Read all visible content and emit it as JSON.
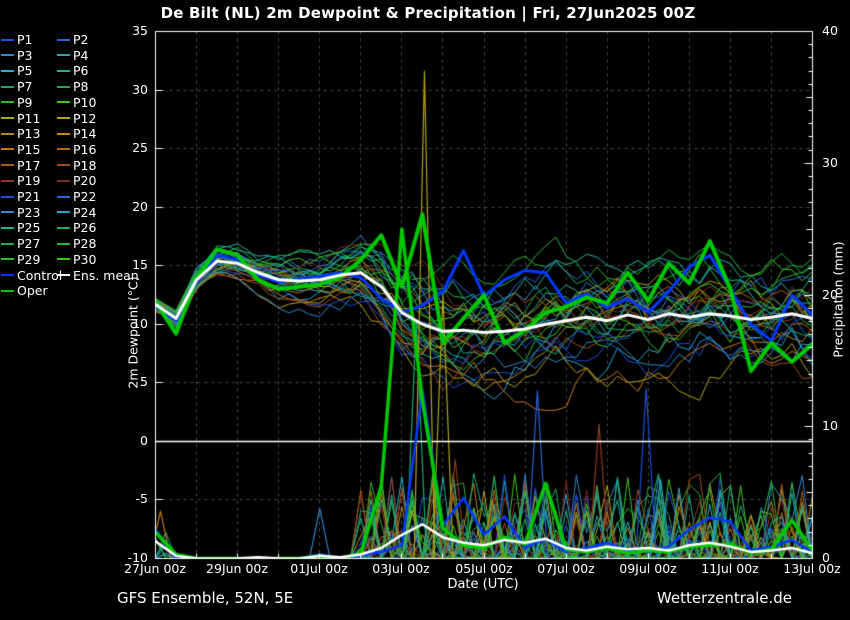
{
  "title": "De Bilt  (NL)  2m Dewpoint & Precipitation | Fri, 27Jun2025 00Z",
  "footer": {
    "left": "GFS Ensemble, 52N, 5E",
    "right": "Wetterzentrale.de"
  },
  "colors": {
    "background": "#000000",
    "text": "#ffffff",
    "grid": "#4a4a4a",
    "frame": "#ffffff",
    "zero_line": "#ffffff",
    "mean": "#ffffff",
    "control": "#0038ff",
    "oper": "#00c800"
  },
  "legend": {
    "column1": [
      {
        "label": "P1",
        "color": "#1e50d8"
      },
      {
        "label": "P3",
        "color": "#2f86c8"
      },
      {
        "label": "P5",
        "color": "#1fb4c8"
      },
      {
        "label": "P7",
        "color": "#1aaa6e"
      },
      {
        "label": "P9",
        "color": "#2cb434"
      },
      {
        "label": "P11",
        "color": "#a8a814"
      },
      {
        "label": "P13",
        "color": "#b08c14"
      },
      {
        "label": "P15",
        "color": "#c47716"
      },
      {
        "label": "P17",
        "color": "#a85c10"
      },
      {
        "label": "P19",
        "color": "#8f3a20"
      },
      {
        "label": "P21",
        "color": "#1e50d8"
      },
      {
        "label": "P23",
        "color": "#2f86c8"
      },
      {
        "label": "P25",
        "color": "#1cb4a0"
      },
      {
        "label": "P27",
        "color": "#1ea85a"
      },
      {
        "label": "P29",
        "color": "#30bc2e"
      },
      {
        "label": "Control",
        "color": "#0038ff"
      },
      {
        "label": "Oper",
        "color": "#00c800"
      }
    ],
    "column2": [
      {
        "label": "P2",
        "color": "#2a64dc"
      },
      {
        "label": "P4",
        "color": "#28a4c8"
      },
      {
        "label": "P6",
        "color": "#1cb496"
      },
      {
        "label": "P8",
        "color": "#22a84b"
      },
      {
        "label": "P10",
        "color": "#3cc41e"
      },
      {
        "label": "P12",
        "color": "#b4a016"
      },
      {
        "label": "P14",
        "color": "#c08614"
      },
      {
        "label": "P16",
        "color": "#b86a12"
      },
      {
        "label": "P18",
        "color": "#a04a1c"
      },
      {
        "label": "P20",
        "color": "#7e2a1e"
      },
      {
        "label": "P22",
        "color": "#2a64dc"
      },
      {
        "label": "P24",
        "color": "#28a4c8"
      },
      {
        "label": "P26",
        "color": "#18a878"
      },
      {
        "label": "P28",
        "color": "#28b040"
      },
      {
        "label": "P30",
        "color": "#3cc41e"
      },
      {
        "label": "Ens. mean",
        "color": "#ffffff"
      }
    ]
  },
  "chart_data": {
    "type": "line",
    "title": "De Bilt  (NL)  2m Dewpoint & Precipitation | Fri, 27Jun2025 00Z",
    "xlabel": "Date (UTC)",
    "x_axis": {
      "days_total": 16,
      "tick_labels": [
        "27Jun 00z",
        "29Jun 00z",
        "01Jul 00z",
        "03Jul 00z",
        "05Jul 00z",
        "07Jul 00z",
        "09Jul 00z",
        "11Jul 00z",
        "13Jul 00z"
      ],
      "tick_step_days": 2,
      "grid_step_days": 1
    },
    "y_left": {
      "label": "2m Dewpoint (°C)",
      "min": -10,
      "max": 35,
      "tick_labels": [
        "35",
        "30",
        "25",
        "20",
        "15",
        "10",
        "5",
        "0",
        "-5",
        "-10"
      ],
      "tick_values": [
        35,
        30,
        25,
        20,
        15,
        10,
        5,
        0,
        -5,
        -10
      ],
      "grid_values": [
        30,
        25,
        20,
        15,
        10,
        5,
        -5
      ],
      "zero_line": 0
    },
    "y_right": {
      "label": "Precipitation (mm)",
      "min": 0,
      "max": 40,
      "tick_labels": [
        "40",
        "30",
        "20",
        "10",
        "0"
      ],
      "tick_values": [
        40,
        30,
        20,
        10,
        0
      ]
    },
    "time_step_hours": 12,
    "series": {
      "mean": {
        "name": "Ens. mean",
        "color": "#ffffff",
        "width": 3,
        "dew": [
          11.7,
          10.5,
          13.8,
          15.4,
          15.2,
          14.4,
          13.8,
          13.7,
          13.8,
          14.2,
          14.4,
          13.2,
          11.0,
          10.0,
          9.4,
          9.5,
          9.3,
          9.4,
          9.6,
          10.0,
          10.3,
          10.6,
          10.3,
          10.8,
          10.4,
          10.9,
          10.6,
          10.9,
          10.7,
          10.4,
          10.6,
          10.9,
          10.5
        ],
        "precip": [
          1.3,
          0.2,
          0,
          0,
          0,
          0.1,
          0,
          0,
          0.2,
          0.1,
          0.3,
          0.8,
          1.8,
          2.6,
          1.6,
          1.2,
          1.0,
          1.4,
          1.2,
          1.5,
          0.8,
          0.6,
          0.9,
          0.7,
          0.8,
          0.6,
          1.0,
          1.2,
          0.9,
          0.5,
          0.6,
          0.8,
          0.4
        ]
      },
      "control": {
        "name": "Control",
        "color": "#0038ff",
        "width": 3,
        "dew": [
          11.5,
          10.3,
          13.5,
          15.9,
          15.5,
          14.2,
          13.6,
          13.9,
          14.1,
          14.4,
          14.0,
          12.2,
          11.0,
          11.6,
          12.8,
          16.3,
          12.4,
          13.8,
          14.6,
          14.4,
          11.8,
          12.6,
          11.4,
          12.2,
          11.0,
          12.8,
          14.9,
          15.9,
          13.0,
          10.0,
          8.6,
          12.5,
          10.8
        ],
        "precip": [
          2.2,
          0,
          0,
          0,
          0,
          0,
          0,
          0,
          0.3,
          0,
          0.2,
          0.5,
          1.0,
          12.8,
          2.5,
          4.6,
          1.8,
          3.2,
          0.8,
          1.5,
          0.5,
          0.8,
          1.2,
          0.6,
          0.5,
          0.9,
          2.2,
          3.1,
          2.8,
          0.6,
          0.9,
          1.4,
          0.5
        ]
      },
      "oper": {
        "name": "Oper",
        "color": "#00c800",
        "width": 4,
        "dew": [
          11.9,
          9.2,
          13.9,
          16.4,
          15.9,
          13.8,
          13.0,
          13.2,
          13.4,
          14.0,
          15.5,
          17.6,
          13.2,
          19.4,
          8.4,
          10.5,
          12.5,
          8.4,
          9.5,
          11.0,
          11.5,
          12.3,
          11.8,
          14.4,
          12.0,
          15.2,
          13.5,
          17.1,
          13.0,
          6.0,
          8.4,
          6.8,
          8.3
        ],
        "precip": [
          2.0,
          0.3,
          0,
          0,
          0,
          0,
          0,
          0,
          0.2,
          0,
          0.4,
          5.5,
          25.0,
          12.0,
          2.3,
          1.0,
          0.8,
          1.6,
          1.1,
          5.7,
          0.7,
          0.5,
          0.8,
          0.4,
          0.6,
          0.5,
          0.9,
          1.0,
          1.1,
          0.4,
          0.7,
          2.9,
          0.6
        ]
      }
    },
    "ensemble": {
      "count": 30,
      "colors": [
        "#1e50d8",
        "#2a64dc",
        "#2f86c8",
        "#28a4c8",
        "#1fb4c8",
        "#1cb496",
        "#1aaa6e",
        "#22a84b",
        "#2cb434",
        "#3cc41e",
        "#a8a814",
        "#b4a016",
        "#b08c14",
        "#c08614",
        "#c47716",
        "#b86a12",
        "#a85c10",
        "#a04a1c",
        "#8f3a20",
        "#7e2a1e",
        "#1e50d8",
        "#2a64dc",
        "#2f86c8",
        "#28a4c8",
        "#1cb4a0",
        "#18a878",
        "#1ea85a",
        "#28b040",
        "#30bc2e",
        "#3cc41e"
      ],
      "spread": [
        0.5,
        0.8,
        1.0,
        1.1,
        1.3,
        1.5,
        1.8,
        2.0,
        2.2,
        2.4,
        2.6,
        2.9,
        3.2,
        3.6,
        3.8,
        4.0,
        4.0,
        4.0,
        4.0,
        4.0,
        4.0,
        4.0,
        4.0,
        4.0,
        4.0,
        4.0,
        4.0,
        4.0,
        4.0,
        4.1,
        4.2,
        4.2,
        4.2
      ],
      "seed": 11,
      "precip_background": {
        "start_day": 5.0,
        "zero_prob": 0.52,
        "max_mm": 6.5
      }
    },
    "precip_events": [
      {
        "color": "#b4a016",
        "day": 6.55,
        "value": 37.0
      },
      {
        "color": "#a8a814",
        "day": 7.0,
        "value": 20.0
      },
      {
        "color": "#18a878",
        "day": 6.35,
        "value": 18.0
      },
      {
        "color": "#2f86c8",
        "day": 4.0,
        "value": 3.8
      },
      {
        "color": "#c47716",
        "day": 0.12,
        "value": 3.6
      },
      {
        "color": "#8f3a20",
        "day": 7.3,
        "value": 7.5
      },
      {
        "color": "#2a64dc",
        "day": 9.3,
        "value": 12.7
      },
      {
        "color": "#22a84b",
        "day": 9.55,
        "value": 5.7
      },
      {
        "color": "#8f3a20",
        "day": 10.8,
        "value": 10.2
      },
      {
        "color": "#1e50d8",
        "day": 11.95,
        "value": 12.9
      },
      {
        "color": "#1fb4c8",
        "day": 13.75,
        "value": 5.2
      },
      {
        "color": "#c47716",
        "day": 14.5,
        "value": 3.3
      },
      {
        "color": "#b08c14",
        "day": 8.2,
        "value": 4.4
      },
      {
        "color": "#28a4c8",
        "day": 12.3,
        "value": 6.0
      }
    ]
  }
}
